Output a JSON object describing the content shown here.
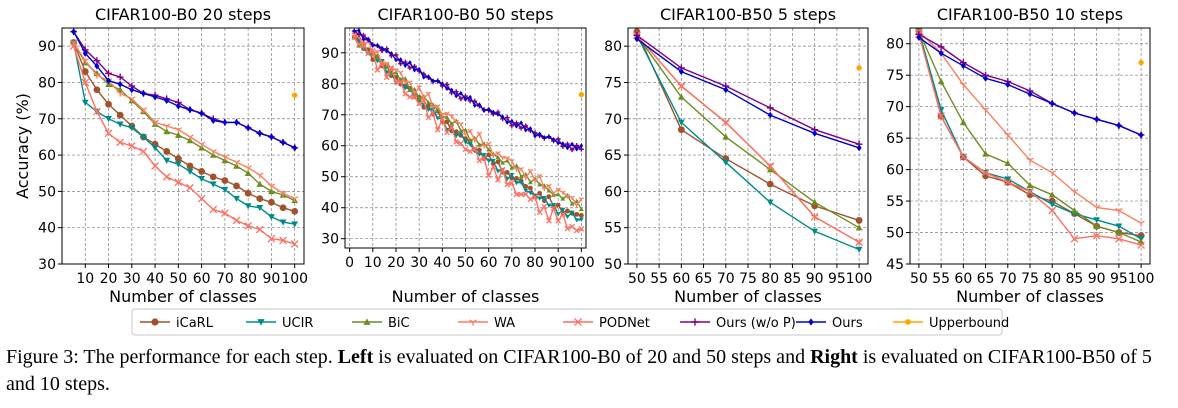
{
  "figure": {
    "ylabel": "Accuracy (%)",
    "legend": [
      {
        "label": "iCaRL",
        "color": "#a0522d",
        "marker": "circle"
      },
      {
        "label": "UCIR",
        "color": "#008b8b",
        "marker": "triangle-down"
      },
      {
        "label": "BiC",
        "color": "#6b8e23",
        "marker": "triangle-up"
      },
      {
        "label": "WA",
        "color": "#fa8060",
        "marker": "tri"
      },
      {
        "label": "PODNet",
        "color": "#ff6f61",
        "marker": "x"
      },
      {
        "label": "Ours (w/o P)",
        "color": "#800080",
        "marker": "plus"
      },
      {
        "label": "Ours",
        "color": "#0000cd",
        "marker": "diamond"
      },
      {
        "label": "Upperbound",
        "color": "#ffa500",
        "marker": "dot"
      }
    ]
  },
  "chart_data": [
    {
      "type": "line",
      "title": "CIFAR100-B0 20 steps",
      "xlabel": "Number of classes",
      "ylabel": "Accuracy (%)",
      "xlim": [
        0,
        104
      ],
      "ylim": [
        30,
        95
      ],
      "xticks": [
        10,
        20,
        30,
        40,
        50,
        60,
        70,
        80,
        90,
        100
      ],
      "xtick_labels": [
        "10",
        "20",
        "30",
        "40",
        "50",
        "60",
        "70",
        "80",
        "90",
        "100"
      ],
      "yticks": [
        30,
        40,
        50,
        60,
        70,
        80,
        90
      ],
      "x": [
        5,
        10,
        15,
        20,
        25,
        30,
        35,
        40,
        45,
        50,
        55,
        60,
        65,
        70,
        75,
        80,
        85,
        90,
        95,
        100
      ],
      "series": [
        {
          "name": "iCaRL",
          "values": [
            91,
            83,
            78,
            74,
            71,
            68,
            65,
            63,
            61,
            59,
            57,
            55.5,
            54,
            53,
            51.5,
            49.5,
            48,
            47,
            45.5,
            44.5
          ]
        },
        {
          "name": "UCIR",
          "values": [
            91,
            74.5,
            72,
            70,
            68.5,
            67.5,
            65,
            62,
            58.5,
            57.5,
            55.5,
            53.5,
            52,
            50.5,
            48,
            46,
            45.5,
            43,
            41.5,
            41
          ]
        },
        {
          "name": "BiC",
          "values": [
            91,
            85.5,
            82.5,
            79.5,
            78,
            75,
            72,
            68.5,
            66.5,
            65.5,
            64,
            62,
            60,
            58.5,
            57,
            55,
            52,
            50,
            49,
            47.5
          ]
        },
        {
          "name": "WA",
          "values": [
            91,
            86,
            82,
            80.5,
            77,
            75.5,
            72.5,
            69,
            68,
            67,
            65,
            63,
            61,
            59.5,
            58,
            56.5,
            54.5,
            51.5,
            49.5,
            48
          ]
        },
        {
          "name": "PODNet",
          "values": [
            90,
            80,
            72,
            66,
            63.5,
            62.5,
            61,
            57,
            54,
            52.5,
            51,
            48,
            45,
            44,
            42,
            40.5,
            39.5,
            37,
            36.5,
            35.5
          ]
        },
        {
          "name": "Ours (w/o P)",
          "values": [
            94,
            89,
            86,
            82.5,
            81.5,
            79,
            77,
            76.5,
            75.5,
            74.5,
            72.5,
            71.5,
            70,
            69,
            69,
            67.5,
            66,
            65,
            63.5,
            62
          ]
        },
        {
          "name": "Ours",
          "values": [
            94,
            88,
            84.5,
            80.5,
            79.5,
            78,
            77,
            76,
            75,
            73.5,
            72.5,
            71.5,
            69.5,
            69,
            69,
            67.5,
            66,
            65,
            63.5,
            62
          ]
        },
        {
          "name": "Upperbound",
          "x": [
            100
          ],
          "values": [
            76.5
          ]
        }
      ]
    },
    {
      "type": "line",
      "title": "CIFAR100-B0 50 steps",
      "xlabel": "Number of classes",
      "ylabel": "",
      "xlim": [
        -2,
        102
      ],
      "ylim": [
        27,
        98
      ],
      "xticks": [
        0,
        10,
        20,
        30,
        40,
        50,
        60,
        70,
        80,
        90,
        100
      ],
      "xtick_labels": [
        "0",
        "10",
        "20",
        "30",
        "40",
        "50",
        "60",
        "70",
        "80",
        "90",
        "100"
      ],
      "yticks": [
        30,
        40,
        50,
        60,
        70,
        80,
        90
      ],
      "xstep": 2,
      "series": [
        {
          "name": "iCaRL",
          "start": 95,
          "end": 37,
          "noise": 1.0
        },
        {
          "name": "UCIR",
          "start": 95,
          "end": 36,
          "noise": 1.0
        },
        {
          "name": "BiC",
          "start": 95,
          "end": 41,
          "noise": 1.0
        },
        {
          "name": "WA",
          "start": 96,
          "end": 42,
          "noise": 1.4
        },
        {
          "name": "PODNet",
          "start": 95,
          "end": 33,
          "noise": 2.0
        },
        {
          "name": "Ours (w/o P)",
          "start": 97,
          "end": 59,
          "noise": 0.8
        },
        {
          "name": "Ours",
          "start": 97,
          "end": 59,
          "noise": 0.8
        },
        {
          "name": "Upperbound",
          "x": [
            100
          ],
          "values": [
            76.5
          ]
        }
      ]
    },
    {
      "type": "line",
      "title": "CIFAR100-B50 5 steps",
      "xlabel": "Number of classes",
      "ylabel": "",
      "xlim": [
        48,
        102
      ],
      "ylim": [
        50,
        82.5
      ],
      "xticks": [
        50,
        55,
        60,
        65,
        70,
        75,
        80,
        85,
        90,
        95,
        100
      ],
      "xtick_labels": [
        "50",
        "55",
        "60",
        "65",
        "70",
        "75",
        "80",
        "85",
        "90",
        "95",
        "100"
      ],
      "yticks": [
        50,
        55,
        60,
        65,
        70,
        75,
        80
      ],
      "x": [
        50,
        60,
        70,
        80,
        90,
        100
      ],
      "series": [
        {
          "name": "iCaRL",
          "values": [
            82,
            68.5,
            64.5,
            61,
            58,
            56
          ]
        },
        {
          "name": "UCIR",
          "values": [
            81.5,
            69.5,
            64,
            58.5,
            54.5,
            52
          ]
        },
        {
          "name": "BiC",
          "values": [
            81.5,
            73,
            67.5,
            63,
            58.5,
            55
          ]
        },
        {
          "name": "WA",
          "values": [
            81.5,
            74.5,
            69.5,
            63.5,
            56.5,
            53
          ]
        },
        {
          "name": "PODNet",
          "values": [
            81.5,
            74.5,
            69.5,
            63.5,
            56.5,
            53
          ]
        },
        {
          "name": "Ours (w/o P)",
          "values": [
            81.5,
            77,
            74.5,
            71.5,
            68.5,
            66.5
          ]
        },
        {
          "name": "Ours",
          "values": [
            81,
            76.5,
            74,
            70.5,
            68,
            66
          ]
        },
        {
          "name": "Upperbound",
          "x": [
            100
          ],
          "values": [
            77
          ]
        }
      ]
    },
    {
      "type": "line",
      "title": "CIFAR100-B50 10 steps",
      "xlabel": "Number of classes",
      "ylabel": "",
      "xlim": [
        48,
        102
      ],
      "ylim": [
        45,
        82.5
      ],
      "xticks": [
        50,
        55,
        60,
        65,
        70,
        75,
        80,
        85,
        90,
        95,
        100
      ],
      "xtick_labels": [
        "50",
        "55",
        "60",
        "65",
        "70",
        "75",
        "80",
        "85",
        "90",
        "95",
        "100"
      ],
      "yticks": [
        45,
        50,
        55,
        60,
        65,
        70,
        75,
        80
      ],
      "x": [
        50,
        55,
        60,
        65,
        70,
        75,
        80,
        85,
        90,
        95,
        100
      ],
      "series": [
        {
          "name": "iCaRL",
          "values": [
            82,
            68.5,
            62,
            59,
            58,
            56,
            55,
            53,
            51,
            50,
            49.5
          ]
        },
        {
          "name": "UCIR",
          "values": [
            82,
            69.5,
            62,
            59.5,
            58.5,
            56.5,
            54.5,
            53,
            52,
            51,
            49
          ]
        },
        {
          "name": "BiC",
          "values": [
            82,
            74,
            67.5,
            62.5,
            61,
            57.5,
            56,
            53.5,
            51,
            50,
            48.5
          ]
        },
        {
          "name": "WA",
          "values": [
            82,
            78.5,
            73.5,
            69.5,
            65.5,
            61.5,
            59.5,
            56.5,
            54,
            53.5,
            51.5
          ]
        },
        {
          "name": "PODNet",
          "values": [
            81.5,
            68.5,
            62,
            59.5,
            58,
            56.5,
            53.5,
            49,
            49.5,
            49,
            48
          ]
        },
        {
          "name": "Ours (w/o P)",
          "values": [
            81.5,
            79.5,
            77,
            75,
            74,
            72.5,
            70.5,
            69,
            68,
            67,
            65.5
          ]
        },
        {
          "name": "Ours",
          "values": [
            81,
            78.5,
            76.5,
            74.5,
            73.5,
            72,
            70.5,
            69,
            68,
            67,
            65.5
          ]
        },
        {
          "name": "Upperbound",
          "x": [
            100
          ],
          "values": [
            77
          ]
        }
      ]
    }
  ],
  "caption": {
    "fig_label": "Figure 3: The performance for each step.",
    "left_bold": "Left",
    "left_text": "is evaluated on CIFAR100-B0 of 20 and 50 steps and",
    "right_bold": "Right",
    "right_text": "is evaluated on CIFAR100-B50 of 5 and 10 steps."
  }
}
